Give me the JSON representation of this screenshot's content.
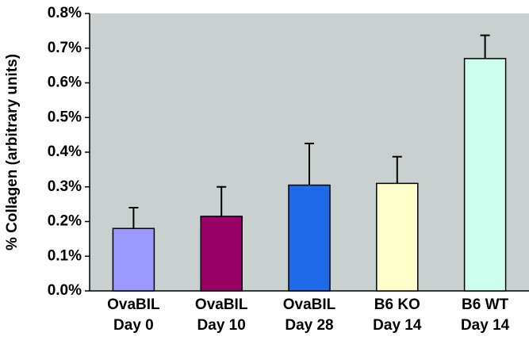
{
  "chart_data": {
    "type": "bar",
    "y_label": "% Collagen (arbitrary units)",
    "categories": [
      [
        "OvaBIL",
        "Day 0"
      ],
      [
        "OvaBIL",
        "Day 10"
      ],
      [
        "OvaBIL",
        "Day 28"
      ],
      [
        "B6 KO",
        "Day 14"
      ],
      [
        "B6 WT",
        "Day 14"
      ]
    ],
    "values": [
      0.18,
      0.215,
      0.305,
      0.31,
      0.67
    ],
    "errors": [
      0.06,
      0.085,
      0.12,
      0.077,
      0.067
    ],
    "colors": [
      "#9999ff",
      "#990066",
      "#1f6ae8",
      "#ffffcc",
      "#ccffee"
    ],
    "ylim": [
      0,
      0.8
    ],
    "yticks": [
      {
        "value": 0,
        "label": "0.0%"
      },
      {
        "value": 0.1,
        "label": "0.1%"
      },
      {
        "value": 0.2,
        "label": "0.2%"
      },
      {
        "value": 0.3,
        "label": "0.3%"
      },
      {
        "value": 0.4,
        "label": "0.4%"
      },
      {
        "value": 0.5,
        "label": "0.5%"
      },
      {
        "value": 0.6,
        "label": "0.6%"
      },
      {
        "value": 0.7,
        "label": "0.7%"
      },
      {
        "value": 0.8,
        "label": "0.8%"
      }
    ],
    "background": "#c8d0d0"
  }
}
